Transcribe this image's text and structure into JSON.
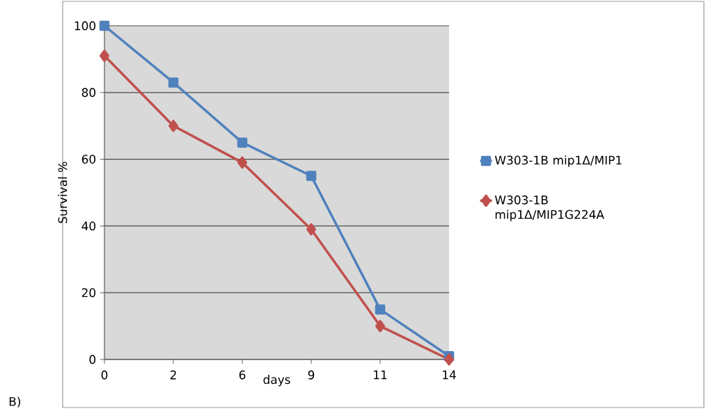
{
  "chart_data": {
    "type": "line",
    "xlabel": "days",
    "ylabel": "Survival %",
    "categories": [
      "0",
      "2",
      "6",
      "9",
      "11",
      "14"
    ],
    "series": [
      {
        "name": "W303-1B mip1Δ/MIP1",
        "color": "#4f81bd",
        "marker": "square",
        "values": [
          100,
          83,
          65,
          55,
          15,
          1
        ]
      },
      {
        "name": "W303-1B mip1Δ/MIP1G224A",
        "color": "#c0504d",
        "marker": "diamond",
        "values": [
          91,
          70,
          59,
          39,
          10,
          0
        ]
      }
    ],
    "ylim": [
      0,
      100
    ],
    "yticks": [
      0,
      20,
      40,
      60,
      80,
      100
    ],
    "grid": "y",
    "legend": "right",
    "line_style": "solid",
    "annotations": [
      "B)"
    ]
  }
}
